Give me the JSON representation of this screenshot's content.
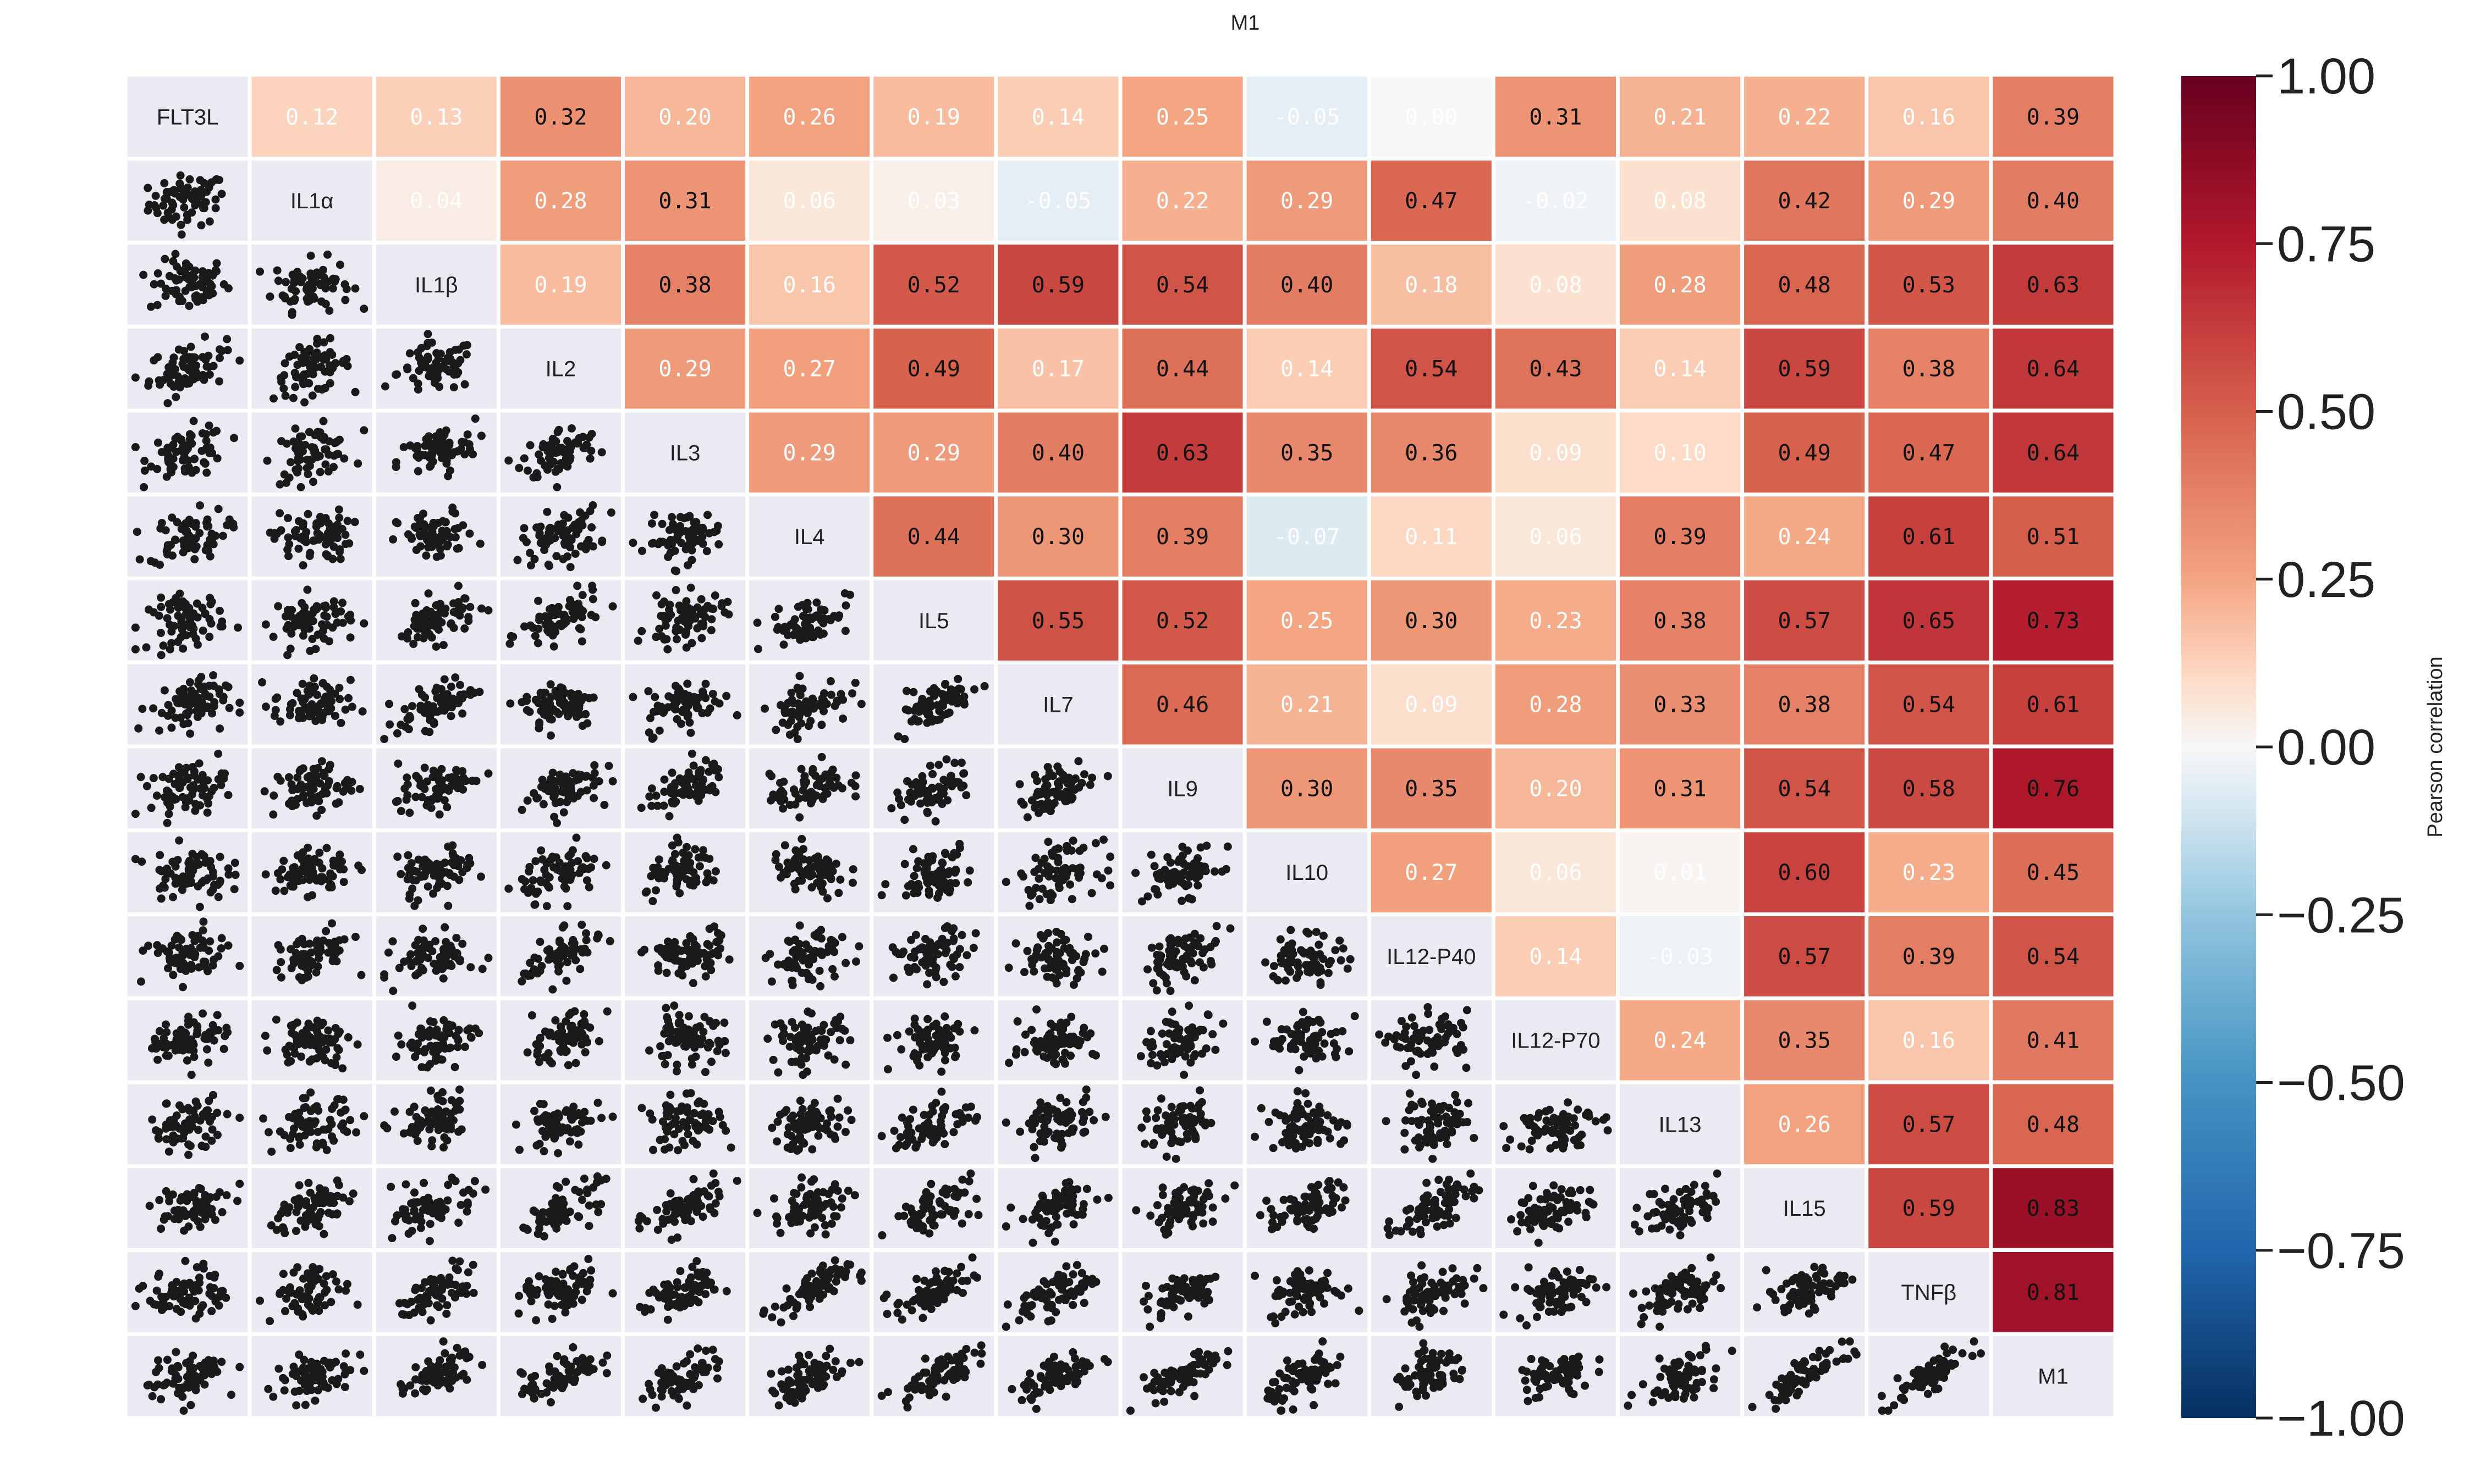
{
  "chart_data": {
    "type": "heatmap",
    "title": "M1",
    "variables": [
      "FLT3L",
      "IL1α",
      "IL1β",
      "IL2",
      "IL3",
      "IL4",
      "IL5",
      "IL7",
      "IL9",
      "IL10",
      "IL12-P40",
      "IL12-P70",
      "IL13",
      "IL15",
      "TNFβ",
      "M1"
    ],
    "upper_triangle": "correlation values",
    "lower_triangle": "pairwise scatter plots",
    "diagonal": "variable names",
    "correlations": [
      [
        1,
        0.12,
        0.13,
        0.32,
        0.2,
        0.26,
        0.19,
        0.14,
        0.25,
        -0.05,
        0.0,
        0.31,
        0.21,
        0.22,
        0.16,
        0.39
      ],
      [
        0.12,
        1,
        0.04,
        0.28,
        0.31,
        0.06,
        0.03,
        -0.05,
        0.22,
        0.29,
        0.47,
        -0.02,
        0.08,
        0.42,
        0.29,
        0.4
      ],
      [
        0.13,
        0.04,
        1,
        0.19,
        0.38,
        0.16,
        0.52,
        0.59,
        0.54,
        0.4,
        0.18,
        0.08,
        0.28,
        0.48,
        0.53,
        0.63
      ],
      [
        0.32,
        0.28,
        0.19,
        1,
        0.29,
        0.27,
        0.49,
        0.17,
        0.44,
        0.14,
        0.54,
        0.43,
        0.14,
        0.59,
        0.38,
        0.64
      ],
      [
        0.2,
        0.31,
        0.38,
        0.29,
        1,
        0.29,
        0.29,
        0.4,
        0.63,
        0.35,
        0.36,
        0.09,
        0.1,
        0.49,
        0.47,
        0.64
      ],
      [
        0.26,
        0.06,
        0.16,
        0.27,
        0.29,
        1,
        0.44,
        0.3,
        0.39,
        -0.07,
        0.11,
        0.06,
        0.39,
        0.24,
        0.61,
        0.51
      ],
      [
        0.19,
        0.03,
        0.52,
        0.49,
        0.29,
        0.44,
        1,
        0.55,
        0.52,
        0.25,
        0.3,
        0.23,
        0.38,
        0.57,
        0.65,
        0.73
      ],
      [
        0.14,
        -0.05,
        0.59,
        0.17,
        0.4,
        0.3,
        0.55,
        1,
        0.46,
        0.21,
        0.09,
        0.28,
        0.33,
        0.38,
        0.54,
        0.61
      ],
      [
        0.25,
        0.22,
        0.54,
        0.44,
        0.63,
        0.39,
        0.52,
        0.46,
        1,
        0.3,
        0.35,
        0.2,
        0.31,
        0.54,
        0.58,
        0.76
      ],
      [
        -0.05,
        0.29,
        0.4,
        0.14,
        0.35,
        -0.07,
        0.25,
        0.21,
        0.3,
        1,
        0.27,
        0.06,
        0.01,
        0.6,
        0.23,
        0.45
      ],
      [
        0.0,
        0.47,
        0.18,
        0.54,
        0.36,
        0.11,
        0.3,
        0.09,
        0.35,
        0.27,
        1,
        0.14,
        -0.03,
        0.57,
        0.39,
        0.54
      ],
      [
        0.31,
        -0.02,
        0.08,
        0.43,
        0.09,
        0.06,
        0.23,
        0.28,
        0.2,
        0.06,
        0.14,
        1,
        0.24,
        0.35,
        0.16,
        0.41
      ],
      [
        0.21,
        0.08,
        0.28,
        0.14,
        0.1,
        0.39,
        0.38,
        0.33,
        0.31,
        0.01,
        -0.03,
        0.24,
        1,
        0.26,
        0.57,
        0.48
      ],
      [
        0.22,
        0.42,
        0.48,
        0.59,
        0.49,
        0.24,
        0.57,
        0.38,
        0.54,
        0.6,
        0.57,
        0.35,
        0.26,
        1,
        0.59,
        0.83
      ],
      [
        0.16,
        0.29,
        0.53,
        0.38,
        0.47,
        0.61,
        0.65,
        0.54,
        0.58,
        0.23,
        0.39,
        0.16,
        0.57,
        0.59,
        1,
        0.81
      ],
      [
        0.39,
        0.4,
        0.63,
        0.64,
        0.64,
        0.51,
        0.73,
        0.61,
        0.76,
        0.45,
        0.54,
        0.41,
        0.48,
        0.83,
        0.81,
        1
      ]
    ],
    "colorbar": {
      "label": "Pearson correlation",
      "range": [
        -1.0,
        1.0
      ],
      "ticks": [
        "1.00",
        "0.75",
        "0.50",
        "0.25",
        "0.00",
        "−0.25",
        "−0.50",
        "−0.75",
        "−1.00"
      ],
      "colormap": "RdBu_r",
      "color_low": "#053061",
      "color_mid": "#f7f7f7",
      "color_high": "#67001f"
    },
    "grid": false,
    "legend": "colorbar-right"
  }
}
